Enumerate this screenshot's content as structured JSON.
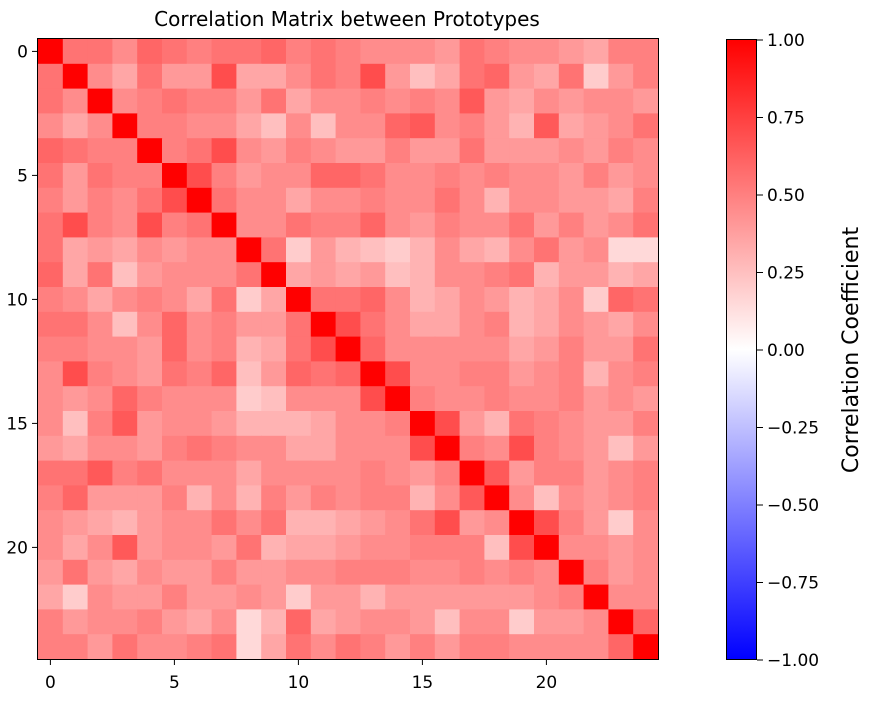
{
  "chart_data": {
    "type": "heatmap",
    "title": "Correlation Matrix between Prototypes",
    "xlabel": "",
    "ylabel": "",
    "size": 25,
    "x_ticks": [
      0,
      5,
      10,
      15,
      20
    ],
    "y_ticks": [
      0,
      5,
      10,
      15,
      20
    ],
    "colorbar": {
      "label": "Correlation Coefficient",
      "range": [
        -1.0,
        1.0
      ],
      "ticks": [
        1.0,
        0.75,
        0.5,
        0.25,
        0.0,
        -0.25,
        -0.5,
        -0.75,
        -1.0
      ],
      "tick_labels": [
        "1.00",
        "0.75",
        "0.50",
        "0.25",
        "0.00",
        "−0.25",
        "−0.50",
        "−0.75",
        "−1.00"
      ],
      "colors": {
        "low": "#0000ff",
        "mid": "#ffffff",
        "high": "#ff0000"
      }
    },
    "matrix": [
      [
        1.0,
        0.55,
        0.55,
        0.45,
        0.6,
        0.55,
        0.5,
        0.55,
        0.55,
        0.6,
        0.5,
        0.55,
        0.5,
        0.45,
        0.45,
        0.45,
        0.4,
        0.55,
        0.5,
        0.45,
        0.45,
        0.4,
        0.35,
        0.5,
        0.5
      ],
      [
        0.55,
        1.0,
        0.45,
        0.35,
        0.55,
        0.4,
        0.4,
        0.7,
        0.35,
        0.35,
        0.45,
        0.55,
        0.5,
        0.7,
        0.4,
        0.25,
        0.35,
        0.55,
        0.6,
        0.4,
        0.35,
        0.55,
        0.2,
        0.4,
        0.5
      ],
      [
        0.55,
        0.45,
        1.0,
        0.45,
        0.5,
        0.55,
        0.5,
        0.5,
        0.4,
        0.55,
        0.35,
        0.45,
        0.45,
        0.5,
        0.45,
        0.5,
        0.45,
        0.65,
        0.4,
        0.35,
        0.45,
        0.4,
        0.45,
        0.45,
        0.4
      ],
      [
        0.45,
        0.35,
        0.45,
        1.0,
        0.5,
        0.5,
        0.45,
        0.45,
        0.35,
        0.25,
        0.45,
        0.25,
        0.45,
        0.45,
        0.6,
        0.65,
        0.45,
        0.5,
        0.4,
        0.3,
        0.65,
        0.35,
        0.4,
        0.45,
        0.55
      ],
      [
        0.6,
        0.55,
        0.5,
        0.5,
        1.0,
        0.5,
        0.55,
        0.7,
        0.45,
        0.4,
        0.5,
        0.45,
        0.4,
        0.4,
        0.5,
        0.4,
        0.4,
        0.55,
        0.4,
        0.4,
        0.4,
        0.45,
        0.4,
        0.5,
        0.45
      ],
      [
        0.55,
        0.4,
        0.55,
        0.5,
        0.5,
        1.0,
        0.7,
        0.5,
        0.4,
        0.45,
        0.45,
        0.6,
        0.6,
        0.55,
        0.45,
        0.45,
        0.5,
        0.45,
        0.5,
        0.45,
        0.45,
        0.4,
        0.5,
        0.4,
        0.45
      ],
      [
        0.5,
        0.4,
        0.5,
        0.45,
        0.55,
        0.7,
        1.0,
        0.55,
        0.45,
        0.45,
        0.35,
        0.45,
        0.45,
        0.5,
        0.45,
        0.45,
        0.55,
        0.45,
        0.3,
        0.45,
        0.45,
        0.4,
        0.4,
        0.35,
        0.5
      ],
      [
        0.55,
        0.7,
        0.5,
        0.45,
        0.7,
        0.5,
        0.55,
        1.0,
        0.45,
        0.45,
        0.55,
        0.5,
        0.5,
        0.6,
        0.45,
        0.4,
        0.5,
        0.45,
        0.45,
        0.55,
        0.4,
        0.5,
        0.4,
        0.45,
        0.55
      ],
      [
        0.55,
        0.35,
        0.4,
        0.35,
        0.45,
        0.4,
        0.45,
        0.45,
        1.0,
        0.55,
        0.2,
        0.4,
        0.3,
        0.25,
        0.2,
        0.3,
        0.45,
        0.35,
        0.3,
        0.45,
        0.55,
        0.4,
        0.45,
        0.15,
        0.15
      ],
      [
        0.6,
        0.35,
        0.55,
        0.25,
        0.4,
        0.45,
        0.45,
        0.45,
        0.55,
        1.0,
        0.35,
        0.4,
        0.35,
        0.4,
        0.25,
        0.3,
        0.45,
        0.45,
        0.5,
        0.55,
        0.3,
        0.4,
        0.4,
        0.3,
        0.35
      ],
      [
        0.5,
        0.45,
        0.35,
        0.45,
        0.5,
        0.45,
        0.35,
        0.55,
        0.2,
        0.35,
        1.0,
        0.55,
        0.55,
        0.6,
        0.45,
        0.3,
        0.35,
        0.45,
        0.4,
        0.3,
        0.35,
        0.45,
        0.2,
        0.6,
        0.55
      ],
      [
        0.55,
        0.55,
        0.45,
        0.25,
        0.45,
        0.6,
        0.45,
        0.5,
        0.4,
        0.4,
        0.55,
        1.0,
        0.7,
        0.55,
        0.45,
        0.35,
        0.35,
        0.45,
        0.5,
        0.3,
        0.35,
        0.45,
        0.4,
        0.35,
        0.45
      ],
      [
        0.5,
        0.5,
        0.45,
        0.45,
        0.4,
        0.6,
        0.45,
        0.5,
        0.3,
        0.35,
        0.55,
        0.7,
        1.0,
        0.6,
        0.45,
        0.45,
        0.45,
        0.45,
        0.45,
        0.35,
        0.4,
        0.5,
        0.4,
        0.4,
        0.55
      ],
      [
        0.45,
        0.7,
        0.5,
        0.45,
        0.4,
        0.55,
        0.5,
        0.6,
        0.25,
        0.4,
        0.6,
        0.55,
        0.6,
        1.0,
        0.7,
        0.45,
        0.45,
        0.5,
        0.5,
        0.4,
        0.45,
        0.5,
        0.3,
        0.45,
        0.5
      ],
      [
        0.45,
        0.4,
        0.45,
        0.6,
        0.5,
        0.45,
        0.45,
        0.45,
        0.2,
        0.25,
        0.45,
        0.45,
        0.45,
        0.7,
        1.0,
        0.5,
        0.45,
        0.45,
        0.5,
        0.45,
        0.45,
        0.5,
        0.4,
        0.45,
        0.4
      ],
      [
        0.45,
        0.25,
        0.5,
        0.65,
        0.4,
        0.45,
        0.45,
        0.4,
        0.3,
        0.3,
        0.3,
        0.35,
        0.45,
        0.45,
        0.5,
        1.0,
        0.7,
        0.4,
        0.3,
        0.55,
        0.5,
        0.45,
        0.4,
        0.4,
        0.5
      ],
      [
        0.4,
        0.35,
        0.45,
        0.45,
        0.4,
        0.5,
        0.55,
        0.5,
        0.45,
        0.45,
        0.35,
        0.35,
        0.45,
        0.45,
        0.45,
        0.7,
        1.0,
        0.5,
        0.45,
        0.7,
        0.5,
        0.45,
        0.4,
        0.25,
        0.4
      ],
      [
        0.55,
        0.55,
        0.65,
        0.5,
        0.55,
        0.45,
        0.45,
        0.45,
        0.35,
        0.45,
        0.45,
        0.45,
        0.45,
        0.5,
        0.45,
        0.4,
        0.5,
        1.0,
        0.65,
        0.4,
        0.5,
        0.5,
        0.4,
        0.45,
        0.5
      ],
      [
        0.5,
        0.6,
        0.4,
        0.4,
        0.4,
        0.5,
        0.3,
        0.45,
        0.3,
        0.5,
        0.4,
        0.5,
        0.45,
        0.5,
        0.5,
        0.3,
        0.45,
        0.65,
        1.0,
        0.45,
        0.25,
        0.45,
        0.4,
        0.45,
        0.5
      ],
      [
        0.45,
        0.4,
        0.35,
        0.3,
        0.4,
        0.45,
        0.45,
        0.55,
        0.45,
        0.55,
        0.3,
        0.3,
        0.35,
        0.4,
        0.45,
        0.55,
        0.7,
        0.4,
        0.45,
        1.0,
        0.7,
        0.5,
        0.4,
        0.2,
        0.45
      ],
      [
        0.45,
        0.35,
        0.45,
        0.65,
        0.4,
        0.45,
        0.45,
        0.4,
        0.55,
        0.3,
        0.35,
        0.35,
        0.4,
        0.45,
        0.45,
        0.5,
        0.5,
        0.5,
        0.25,
        0.7,
        1.0,
        0.45,
        0.45,
        0.4,
        0.45
      ],
      [
        0.4,
        0.55,
        0.4,
        0.35,
        0.45,
        0.4,
        0.4,
        0.5,
        0.4,
        0.4,
        0.45,
        0.45,
        0.5,
        0.5,
        0.5,
        0.45,
        0.45,
        0.5,
        0.45,
        0.5,
        0.45,
        1.0,
        0.5,
        0.4,
        0.45
      ],
      [
        0.35,
        0.2,
        0.45,
        0.4,
        0.4,
        0.5,
        0.4,
        0.4,
        0.45,
        0.4,
        0.2,
        0.4,
        0.4,
        0.3,
        0.4,
        0.4,
        0.4,
        0.4,
        0.4,
        0.4,
        0.45,
        0.5,
        1.0,
        0.45,
        0.45
      ],
      [
        0.5,
        0.4,
        0.45,
        0.45,
        0.5,
        0.4,
        0.35,
        0.45,
        0.15,
        0.3,
        0.6,
        0.35,
        0.4,
        0.45,
        0.45,
        0.4,
        0.25,
        0.45,
        0.45,
        0.2,
        0.4,
        0.4,
        0.45,
        1.0,
        0.6
      ],
      [
        0.5,
        0.5,
        0.4,
        0.55,
        0.45,
        0.45,
        0.5,
        0.55,
        0.15,
        0.35,
        0.55,
        0.45,
        0.55,
        0.5,
        0.4,
        0.5,
        0.4,
        0.5,
        0.5,
        0.45,
        0.45,
        0.45,
        0.45,
        0.6,
        1.0
      ]
    ]
  }
}
